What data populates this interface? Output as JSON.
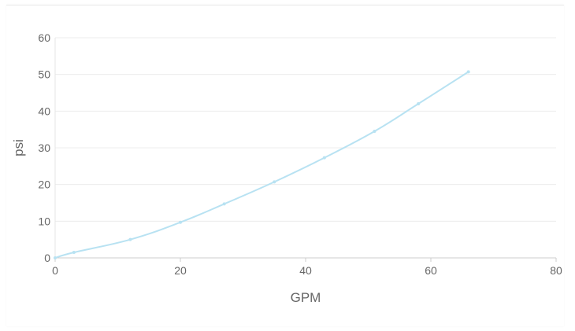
{
  "chart_data": {
    "type": "line",
    "title": "",
    "xlabel": "GPM",
    "ylabel": "psi",
    "xlim": [
      0,
      80
    ],
    "ylim": [
      0,
      60
    ],
    "x_ticks": [
      "0",
      "20",
      "40",
      "60",
      "80"
    ],
    "y_ticks": [
      "0",
      "10",
      "20",
      "30",
      "40",
      "50",
      "60"
    ],
    "grid": "horizontal",
    "legend": "none",
    "series": [
      {
        "color": "#b8e2f2",
        "points": [
          [
            0,
            0
          ],
          [
            3,
            1.5
          ],
          [
            12,
            5
          ],
          [
            20,
            9.7
          ],
          [
            27,
            14.7
          ],
          [
            35,
            20.7
          ],
          [
            43,
            27.3
          ],
          [
            51,
            34.5
          ],
          [
            58,
            42
          ],
          [
            66,
            50.7
          ]
        ]
      }
    ]
  }
}
